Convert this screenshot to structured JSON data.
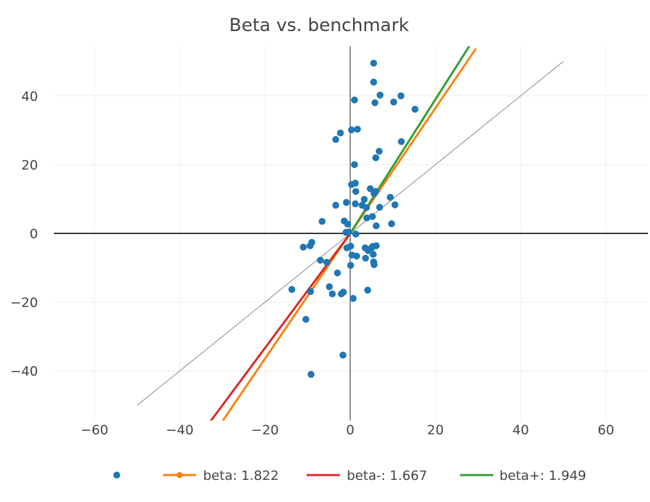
{
  "chart_data": {
    "type": "scatter",
    "title": "Beta vs. benchmark",
    "xlabel": "",
    "ylabel": "",
    "xlim": [
      -70,
      70
    ],
    "ylim": [
      -55,
      55
    ],
    "xticks": [
      -60,
      -40,
      -20,
      0,
      20,
      40,
      60
    ],
    "yticks": [
      -40,
      -20,
      0,
      20,
      40
    ],
    "xtick_labels": [
      "−60",
      "−40",
      "−20",
      "0",
      "20",
      "40",
      "60"
    ],
    "ytick_labels": [
      "−40",
      "−20",
      "0",
      "20",
      "40"
    ],
    "grid": true,
    "scatter": {
      "name": "",
      "color": "#1f77b4",
      "points": [
        [
          5.5,
          49.5
        ],
        [
          5.5,
          44
        ],
        [
          1,
          38.8
        ],
        [
          5.8,
          38
        ],
        [
          7,
          40.2
        ],
        [
          10.2,
          38.2
        ],
        [
          11.9,
          40
        ],
        [
          15.2,
          36.1
        ],
        [
          0.3,
          30.1
        ],
        [
          1.7,
          30.3
        ],
        [
          -2.3,
          29.2
        ],
        [
          -3.4,
          27.3
        ],
        [
          12,
          26.7
        ],
        [
          6.8,
          23.9
        ],
        [
          6,
          22
        ],
        [
          1,
          20
        ],
        [
          0.3,
          14.2
        ],
        [
          1.2,
          14.6
        ],
        [
          1.3,
          12.2
        ],
        [
          4.7,
          13
        ],
        [
          5.6,
          11.6
        ],
        [
          6,
          12.2
        ],
        [
          3.3,
          9.9
        ],
        [
          -0.9,
          9
        ],
        [
          1.2,
          8.6
        ],
        [
          2.8,
          8.2
        ],
        [
          -3.4,
          8.2
        ],
        [
          3.8,
          7.5
        ],
        [
          6.9,
          7.6
        ],
        [
          9.4,
          10.5
        ],
        [
          10.5,
          8.3
        ],
        [
          5.2,
          4.9
        ],
        [
          3.9,
          4.5
        ],
        [
          -6.6,
          3.5
        ],
        [
          -1.4,
          3.6
        ],
        [
          -0.6,
          2.7
        ],
        [
          9.7,
          2.8
        ],
        [
          6.1,
          2.2
        ],
        [
          -1,
          0.3
        ],
        [
          -0.4,
          0.4
        ],
        [
          1.3,
          -0.2
        ],
        [
          -9,
          -2.6
        ],
        [
          -9.4,
          -3.6
        ],
        [
          -11,
          -4
        ],
        [
          -0.8,
          -4.2
        ],
        [
          0.1,
          -3.7
        ],
        [
          3.5,
          -4.2
        ],
        [
          5.3,
          -3.8
        ],
        [
          6.1,
          -3.6
        ],
        [
          5,
          -4.2
        ],
        [
          4.2,
          -5
        ],
        [
          1.5,
          -6.6
        ],
        [
          0.4,
          -6.3
        ],
        [
          5.4,
          -6.1
        ],
        [
          3.6,
          -7.2
        ],
        [
          -7,
          -7.8
        ],
        [
          -5.5,
          -8.4
        ],
        [
          5.5,
          -8.3
        ],
        [
          5.6,
          -9.1
        ],
        [
          0.1,
          -9.3
        ],
        [
          -3,
          -11.5
        ],
        [
          -4.9,
          -15.5
        ],
        [
          -13.7,
          -16.3
        ],
        [
          -4.2,
          -17.6
        ],
        [
          -9.3,
          -16.9
        ],
        [
          -1.6,
          -17.1
        ],
        [
          -2.1,
          -17.6
        ],
        [
          4.1,
          -16.5
        ],
        [
          0.7,
          -18.9
        ],
        [
          -10.4,
          -25
        ],
        [
          -1.7,
          -35.4
        ],
        [
          -9.2,
          -41
        ]
      ]
    },
    "reference_line": {
      "name": "",
      "x": [
        -50,
        50
      ],
      "y": [
        -50,
        50
      ],
      "color": "#999999"
    },
    "fit_lines": [
      {
        "name": "beta: 1.822",
        "slope": 1.822,
        "x": [
          -31.5,
          29.5
        ],
        "color": "#ff7f0e"
      },
      {
        "name": "beta-: 1.667",
        "slope": 1.667,
        "x": [
          -34,
          0
        ],
        "color": "#d62728"
      },
      {
        "name": "beta+: 1.949",
        "slope": 1.949,
        "x": [
          0,
          28
        ],
        "color": "#2ca02c"
      }
    ],
    "legend": {
      "placement": "bottom",
      "entries": [
        "",
        "beta: 1.822",
        "beta-: 1.667",
        "beta+: 1.949"
      ]
    }
  }
}
